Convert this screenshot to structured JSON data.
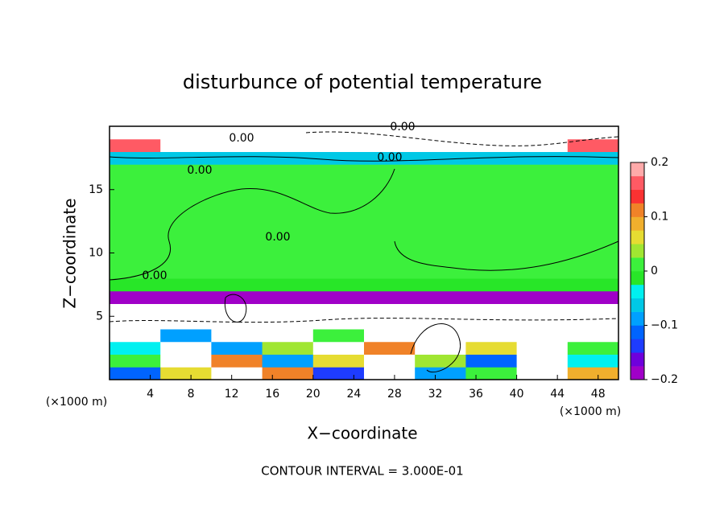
{
  "chart_data": {
    "type": "contour",
    "title": "disturbunce of potential temperature",
    "x_label": "X−coordinate",
    "y_label": "Z−coordinate",
    "x_unit": "(×1000 m)",
    "y_unit": "(×1000 m)",
    "footer": "CONTOUR INTERVAL = 3.000E-01",
    "contour_labels": [
      "0.00",
      "0.00",
      "0.00",
      "0.00",
      "0.00",
      "0.00"
    ],
    "xlim": [
      0,
      50
    ],
    "ylim": [
      0,
      20
    ],
    "xticks": [
      4,
      8,
      12,
      16,
      20,
      24,
      28,
      32,
      36,
      40,
      44,
      48
    ],
    "yticks": [
      5,
      10,
      15
    ],
    "clim": [
      -0.2,
      0.2
    ],
    "cticks": [
      {
        "value": -0.2,
        "label": "−0.2"
      },
      {
        "value": -0.1,
        "label": "−0.1"
      },
      0,
      0.1,
      0.2
    ],
    "colors": [
      "#a000c8",
      "#6e00dc",
      "#1e3cff",
      "#0064ff",
      "#00a0ff",
      "#00c8e6",
      "#00f0f0",
      "#28e628",
      "#3cf03c",
      "#a0e632",
      "#e6dc32",
      "#f0af2d",
      "#f08228",
      "#fa3232",
      "#ff5a64",
      "#ffaaaa"
    ],
    "field": {
      "x": [
        0,
        5,
        10,
        15,
        20,
        25,
        30,
        35,
        40,
        45,
        50
      ],
      "z": [
        0,
        1,
        2,
        3,
        4,
        5,
        6,
        7,
        8,
        9,
        10,
        11,
        12,
        13,
        14,
        15,
        16,
        17,
        18,
        19,
        20
      ],
      "values": [
        [
          -0.12,
          0.05,
          -0.3,
          0.1,
          -0.15,
          0.3,
          -0.1,
          0.02,
          -0.3,
          0.08
        ],
        [
          0.02,
          -0.3,
          0.12,
          -0.08,
          0.05,
          -0.3,
          0.03,
          -0.12,
          0.3,
          -0.05
        ],
        [
          -0.05,
          0.3,
          -0.1,
          0.04,
          -0.3,
          0.1,
          -0.3,
          0.05,
          -0.3,
          0.02
        ],
        [
          0.3,
          -0.08,
          0.3,
          -0.3,
          0.02,
          -0.3,
          0.3,
          -0.3,
          -0.3,
          0.3
        ],
        [
          -0.3,
          0.3,
          -0.3,
          -0.3,
          -0.3,
          -0.3,
          -0.3,
          -0.3,
          0.3,
          -0.3
        ],
        [
          -0.3,
          -0.3,
          -0.3,
          -0.3,
          -0.3,
          -0.3,
          -0.3,
          -0.3,
          -0.3,
          -0.3
        ],
        [
          -0.19,
          -0.19,
          -0.19,
          -0.19,
          -0.19,
          -0.19,
          -0.19,
          -0.19,
          -0.19,
          -0.19
        ],
        [
          -0.02,
          -0.02,
          -0.02,
          -0.02,
          -0.02,
          -0.02,
          -0.02,
          -0.02,
          -0.02,
          -0.02
        ],
        [
          0.01,
          0.01,
          0.01,
          0.01,
          0.01,
          0.01,
          0.01,
          0.01,
          0.01,
          0.01
        ],
        [
          0.01,
          0.01,
          0.01,
          0.01,
          0.01,
          0.01,
          0.01,
          0.01,
          0.01,
          0.01
        ],
        [
          0.01,
          0.01,
          0.01,
          0.01,
          0.01,
          0.01,
          0.01,
          0.01,
          0.01,
          0.01
        ],
        [
          0.01,
          0.01,
          0.01,
          0.01,
          0.01,
          0.01,
          0.01,
          0.01,
          0.01,
          0.01
        ],
        [
          0.01,
          0.01,
          0.01,
          0.01,
          0.01,
          0.01,
          0.01,
          0.01,
          0.01,
          0.01
        ],
        [
          0.01,
          0.01,
          0.01,
          0.01,
          0.01,
          0.01,
          0.01,
          0.01,
          0.01,
          0.01
        ],
        [
          0.01,
          0.01,
          0.01,
          0.01,
          0.01,
          0.01,
          0.01,
          0.01,
          0.01,
          0.01
        ],
        [
          0.01,
          0.01,
          0.01,
          0.01,
          0.01,
          0.01,
          0.01,
          0.01,
          0.01,
          0.01
        ],
        [
          0.01,
          0.01,
          0.01,
          0.01,
          0.01,
          0.01,
          0.01,
          0.01,
          0.01,
          0.01
        ],
        [
          -0.06,
          -0.06,
          -0.06,
          -0.06,
          -0.06,
          -0.06,
          -0.06,
          -0.06,
          -0.06,
          -0.06
        ],
        [
          0.17,
          -0.3,
          0.3,
          -0.3,
          0.3,
          -0.3,
          -0.3,
          0.3,
          -0.3,
          0.17
        ],
        [
          -0.3,
          -0.3,
          -0.3,
          -0.3,
          -0.3,
          -0.3,
          -0.3,
          -0.3,
          -0.3,
          -0.3
        ]
      ]
    }
  }
}
